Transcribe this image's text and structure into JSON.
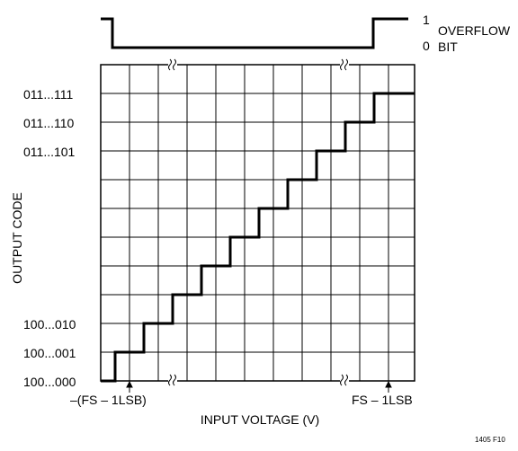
{
  "overflow": {
    "label_line1": "OVERFLOW",
    "label_line2": "BIT",
    "high_value": "1",
    "low_value": "0"
  },
  "y_axis": {
    "title": "OUTPUT CODE",
    "codes": [
      "011...111",
      "011...110",
      "011...101",
      "100...010",
      "100...001",
      "100...000"
    ]
  },
  "x_axis": {
    "title": "INPUT VOLTAGE (V)",
    "left_marker": "–(FS – 1LSB)",
    "right_marker": "FS – 1LSB"
  },
  "figure_id": "1405 F10"
}
